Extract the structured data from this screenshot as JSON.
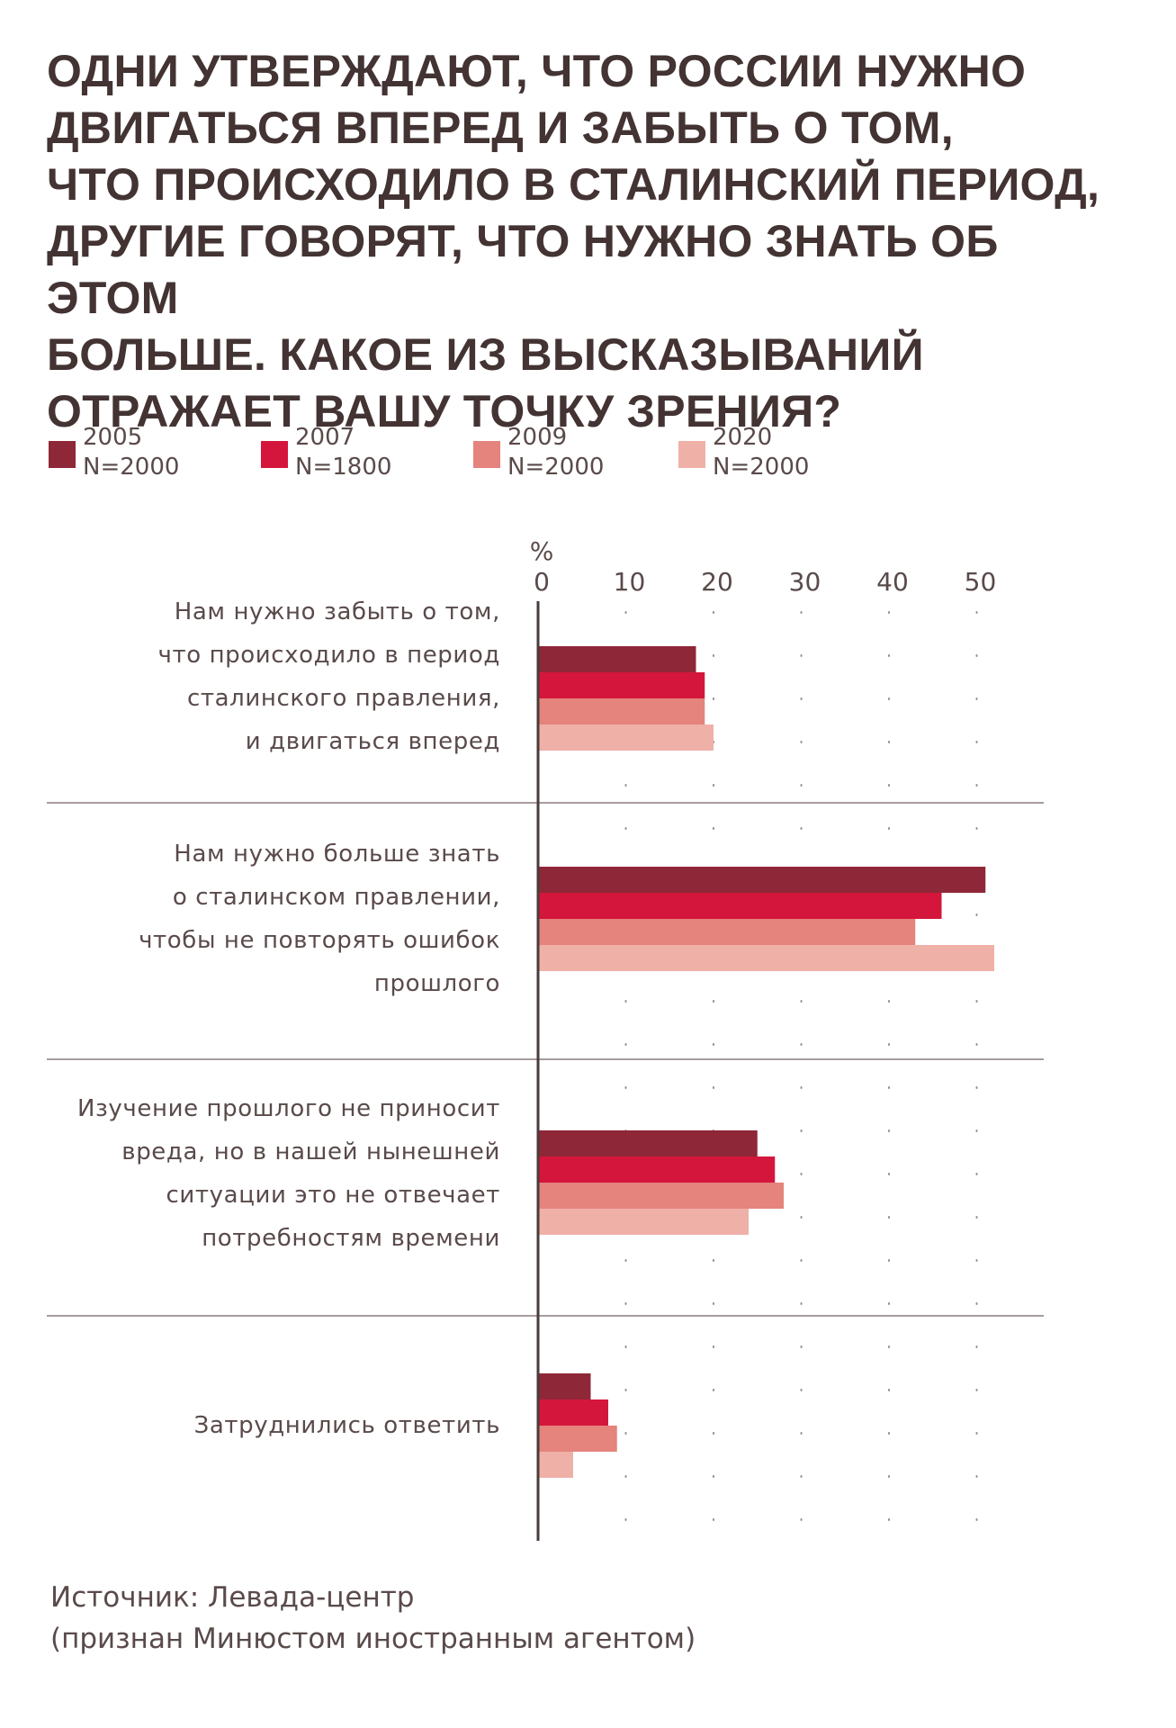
{
  "title_lines": [
    "ОДНИ УТВЕРЖДАЮТ, ЧТО РОССИИ НУЖНО",
    "ДВИГАТЬСЯ ВПЕРЕД И ЗАБЫТЬ О ТОМ,",
    "ЧТО ПРОИСХОДИЛО В СТАЛИНСКИЙ ПЕРИОД,",
    "ДРУГИЕ ГОВОРЯТ, ЧТО НУЖНО ЗНАТЬ ОБ ЭТОМ",
    "БОЛЬШЕ. КАКОЕ ИЗ ВЫСКАЗЫВАНИЙ",
    "ОТРАЖАЕТ ВАШУ ТОЧКУ ЗРЕНИЯ?"
  ],
  "legend": [
    {
      "year": "2005",
      "n": "N=2000",
      "color": "#8e2737"
    },
    {
      "year": "2007",
      "n": "N=1800",
      "color": "#d4163c"
    },
    {
      "year": "2009",
      "n": "N=2000",
      "color": "#e5837d"
    },
    {
      "year": "2020",
      "n": "N=2000",
      "color": "#efb0a8"
    }
  ],
  "chart_data": {
    "type": "bar",
    "orientation": "horizontal",
    "unit_label": "%",
    "x_ticks": [
      "0",
      "10",
      "20",
      "30",
      "40",
      "50"
    ],
    "xlim": [
      0,
      57
    ],
    "grid": "dotted vertical",
    "legend_position": "top",
    "categories": [
      [
        "Нам нужно забыть о том,",
        "что происходило в период",
        "сталинского правления,",
        "и двигаться вперед"
      ],
      [
        "Нам нужно больше знать",
        "о сталинском правлении,",
        "чтобы не повторять ошибок",
        "прошлого"
      ],
      [
        "Изучение прошлого не приносит",
        "вреда, но в нашей нынешней",
        "ситуации это не отвечает",
        "потребностям времени"
      ],
      [
        "Затруднились ответить"
      ]
    ],
    "series": [
      {
        "name": "2005",
        "color": "#8e2737",
        "values": [
          18,
          51,
          25,
          6
        ]
      },
      {
        "name": "2007",
        "color": "#d4163c",
        "values": [
          19,
          46,
          27,
          8
        ]
      },
      {
        "name": "2009",
        "color": "#e5837d",
        "values": [
          19,
          43,
          28,
          9
        ]
      },
      {
        "name": "2020",
        "color": "#efb0a8",
        "values": [
          20,
          52,
          24,
          4
        ]
      }
    ]
  },
  "source": {
    "line1": "Источник: Левада-центр",
    "line2": "(признан Минюстом иностранным агентом)"
  }
}
